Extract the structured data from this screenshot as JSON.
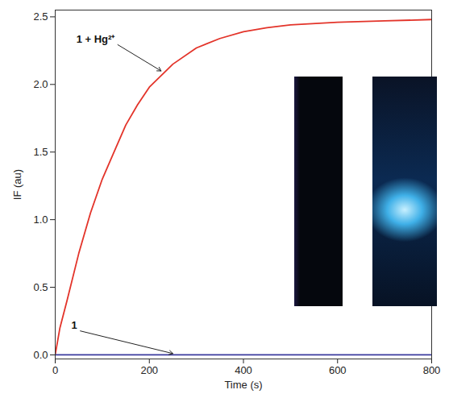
{
  "chart_data": {
    "type": "line",
    "xlabel": "Time (s)",
    "ylabel": "IF (au)",
    "xlim": [
      0,
      800
    ],
    "xticks": [
      0,
      200,
      400,
      600,
      800
    ],
    "ylim": [
      -0.03,
      2.55
    ],
    "yticks": [
      {
        "value": 0,
        "label": "0.0"
      },
      {
        "value": 0.5,
        "label": "0.5"
      },
      {
        "value": 1,
        "label": "1.0"
      },
      {
        "value": 1.5,
        "label": "1.5"
      },
      {
        "value": 2,
        "label": "2.0"
      },
      {
        "value": 2.5,
        "label": "2.5"
      }
    ],
    "grid": false,
    "series": [
      {
        "name": "1 + Hg²⁺",
        "color": "#e3342a",
        "line_style": "solid",
        "x": [
          0,
          10,
          25,
          50,
          75,
          100,
          125,
          150,
          175,
          200,
          250,
          300,
          350,
          400,
          450,
          500,
          600,
          700,
          800
        ],
        "values": [
          0,
          0.2,
          0.4,
          0.75,
          1.05,
          1.3,
          1.5,
          1.7,
          1.85,
          1.98,
          2.15,
          2.27,
          2.34,
          2.39,
          2.42,
          2.44,
          2.46,
          2.47,
          2.48
        ],
        "label_xy": [
          130,
          2.3
        ],
        "arrow_to": [
          225,
          2.1
        ]
      },
      {
        "name": "1",
        "color": "#3b3b9e",
        "line_style": "solid",
        "x": [
          0,
          200,
          400,
          600,
          800
        ],
        "values": [
          0,
          0,
          0,
          0,
          0
        ],
        "label_xy": [
          50,
          0.18
        ],
        "arrow_to": [
          250,
          0.01
        ]
      }
    ]
  }
}
